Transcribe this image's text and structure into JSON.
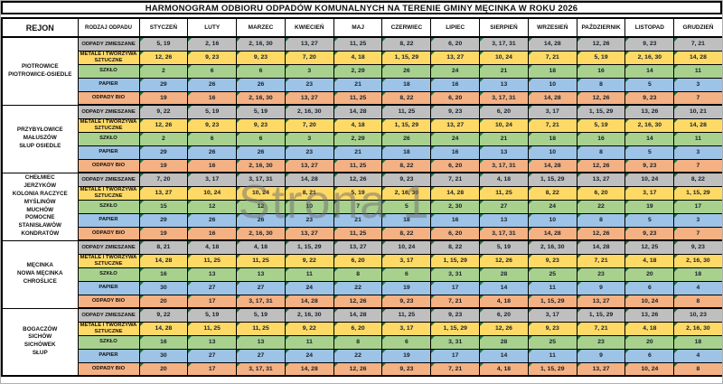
{
  "title": "HARMONOGRAM ODBIORU ODPADÓW KOMUNALNYCH NA TERENIE GMINY MĘCINKA W ROKU 2026",
  "watermark": "Strona 1",
  "header": {
    "rejon": "REJON",
    "rodzaj": "RODZAJ ODPADU",
    "months": [
      "STYCZEŃ",
      "LUTY",
      "MARZEC",
      "KWIECIEŃ",
      "MAJ",
      "CZERWIEC",
      "LIPIEC",
      "SIERPIEŃ",
      "WRZESIEŃ",
      "PAŹDZIERNIK",
      "LISTOPAD",
      "GRUDZIEŃ"
    ]
  },
  "waste_types": [
    {
      "key": "zmieszane",
      "label": "ODPADY ZMIESZANE",
      "color": "#bfbfbf"
    },
    {
      "key": "metale",
      "label": "METALE I TWORZYWA SZTUCZNE",
      "color": "#ffd966"
    },
    {
      "key": "szklo",
      "label": "SZKŁO",
      "color": "#a9d18e"
    },
    {
      "key": "papier",
      "label": "PAPIER",
      "color": "#9dc3e6"
    },
    {
      "key": "bio",
      "label": "ODPADY BIO",
      "color": "#f4b183"
    }
  ],
  "triangle_color": "#1d6f42",
  "regions": [
    {
      "name_lines": [
        "PIOTROWICE",
        "PIOTROWICE-OSIEDLE"
      ],
      "schedule": [
        [
          "5, 19",
          "2, 16",
          "2, 16, 30",
          "13, 27",
          "11, 25",
          "8, 22",
          "6, 20",
          "3, 17, 31",
          "14, 28",
          "12, 26",
          "9, 23",
          "7, 21"
        ],
        [
          "12, 26",
          "9, 23",
          "9, 23",
          "7, 20",
          "4, 18",
          "1, 15, 29",
          "13, 27",
          "10, 24",
          "7, 21",
          "5, 19",
          "2, 16, 30",
          "14, 28"
        ],
        [
          "2",
          "6",
          "6",
          "3",
          "2, 29",
          "26",
          "24",
          "21",
          "18",
          "16",
          "14",
          "11"
        ],
        [
          "29",
          "26",
          "26",
          "23",
          "21",
          "18",
          "16",
          "13",
          "10",
          "8",
          "5",
          "3"
        ],
        [
          "19",
          "16",
          "2, 16, 30",
          "13, 27",
          "11, 25",
          "8, 22",
          "6, 20",
          "3, 17, 31",
          "14, 28",
          "12, 26",
          "9, 23",
          "7"
        ]
      ]
    },
    {
      "name_lines": [
        "PRZYBYŁOWICE",
        "MAŁUSZÓW",
        "SŁUP OSIEDLE"
      ],
      "schedule": [
        [
          "9, 22",
          "5, 19",
          "5, 19",
          "2, 16, 30",
          "14, 28",
          "11, 25",
          "9, 23",
          "6, 20",
          "3, 17",
          "1, 15, 29",
          "13, 26",
          "10, 21"
        ],
        [
          "12, 26",
          "9, 23",
          "9, 23",
          "7, 20",
          "4, 18",
          "1, 15, 29",
          "13, 27",
          "10, 24",
          "7, 21",
          "5, 19",
          "2, 16, 30",
          "14, 28"
        ],
        [
          "2",
          "6",
          "6",
          "3",
          "2, 29",
          "26",
          "24",
          "21",
          "18",
          "16",
          "14",
          "11"
        ],
        [
          "29",
          "26",
          "26",
          "23",
          "21",
          "18",
          "16",
          "13",
          "10",
          "8",
          "5",
          "3"
        ],
        [
          "19",
          "16",
          "2, 16, 30",
          "13, 27",
          "11, 25",
          "8, 22",
          "6, 20",
          "3, 17, 31",
          "14, 28",
          "12, 26",
          "9, 23",
          "7"
        ]
      ]
    },
    {
      "name_lines": [
        "CHEŁMIEC",
        "JERZYKÓW",
        "KOLONIA RACZYCE",
        "MYŚLINÓW",
        "MUCHÓW",
        "POMOCNE",
        "STANISŁAWÓW",
        "KONDRATÓW"
      ],
      "schedule": [
        [
          "7, 20",
          "3, 17",
          "3, 17, 31",
          "14, 28",
          "12, 26",
          "9, 23",
          "7, 21",
          "4, 18",
          "1, 15, 29",
          "13, 27",
          "10, 24",
          "8, 22"
        ],
        [
          "13, 27",
          "10, 24",
          "10, 24",
          "8, 21",
          "5, 19",
          "2, 16, 30",
          "14, 28",
          "11, 25",
          "8, 22",
          "6, 20",
          "3, 17",
          "1, 15, 29"
        ],
        [
          "15",
          "12",
          "12",
          "10",
          "7",
          "5",
          "2, 30",
          "27",
          "24",
          "22",
          "19",
          "17"
        ],
        [
          "29",
          "26",
          "26",
          "23",
          "21",
          "18",
          "16",
          "13",
          "10",
          "8",
          "5",
          "3"
        ],
        [
          "19",
          "16",
          "2, 16, 30",
          "13, 27",
          "11, 25",
          "8, 22",
          "6, 20",
          "3, 17, 31",
          "14, 28",
          "12, 26",
          "9, 23",
          "7"
        ]
      ]
    },
    {
      "name_lines": [
        "MĘCINKA",
        "NOWA MĘCINKA",
        "CHROŚLICE"
      ],
      "schedule": [
        [
          "8, 21",
          "4, 18",
          "4, 18",
          "1, 15, 29",
          "13, 27",
          "10, 24",
          "8, 22",
          "5, 19",
          "2, 16, 30",
          "14, 28",
          "12, 25",
          "9, 23"
        ],
        [
          "14, 28",
          "11, 25",
          "11, 25",
          "9, 22",
          "6, 20",
          "3, 17",
          "1, 15, 29",
          "12, 26",
          "9, 23",
          "7, 21",
          "4, 18",
          "2, 16, 30"
        ],
        [
          "16",
          "13",
          "13",
          "11",
          "8",
          "6",
          "3, 31",
          "28",
          "25",
          "23",
          "20",
          "18"
        ],
        [
          "30",
          "27",
          "27",
          "24",
          "22",
          "19",
          "17",
          "14",
          "11",
          "9",
          "6",
          "4"
        ],
        [
          "20",
          "17",
          "3, 17, 31",
          "14, 28",
          "12, 26",
          "9, 23",
          "7, 21",
          "4, 18",
          "1, 15, 29",
          "13, 27",
          "10, 24",
          "8"
        ]
      ]
    },
    {
      "name_lines": [
        "BOGACZÓW",
        "SICHÓW",
        "SICHÓWEK",
        "SŁUP"
      ],
      "schedule": [
        [
          "9, 22",
          "5, 19",
          "5, 19",
          "2, 16, 30",
          "14, 28",
          "11, 25",
          "9, 23",
          "6, 20",
          "3, 17",
          "1, 15, 29",
          "13, 26",
          "10, 23"
        ],
        [
          "14, 28",
          "11, 25",
          "11, 25",
          "9, 22",
          "6, 20",
          "3, 17",
          "1, 15, 29",
          "12, 26",
          "9, 23",
          "7, 21",
          "4, 18",
          "2, 16, 30"
        ],
        [
          "16",
          "13",
          "13",
          "11",
          "8",
          "6",
          "3, 31",
          "28",
          "25",
          "23",
          "20",
          "18"
        ],
        [
          "30",
          "27",
          "27",
          "24",
          "22",
          "19",
          "17",
          "14",
          "11",
          "9",
          "6",
          "4"
        ],
        [
          "20",
          "17",
          "3, 17, 31",
          "14, 28",
          "12, 26",
          "9, 23",
          "7, 21",
          "4, 18",
          "1, 15, 29",
          "13, 27",
          "10, 24",
          "8"
        ]
      ]
    }
  ]
}
